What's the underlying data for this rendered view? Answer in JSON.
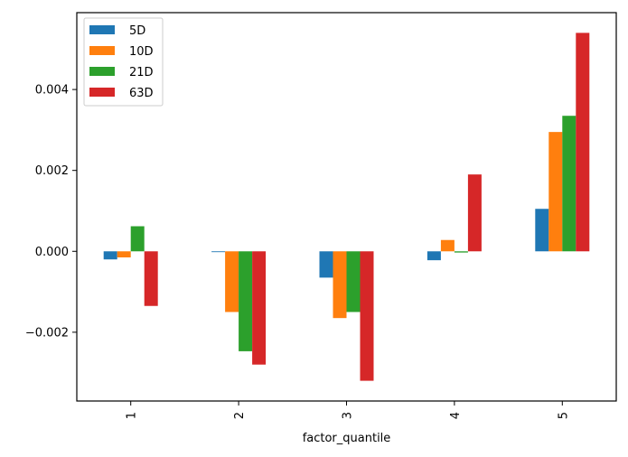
{
  "chart_data": {
    "type": "bar",
    "title": "",
    "xlabel": "factor_quantile",
    "ylabel": "",
    "categories": [
      "1",
      "2",
      "3",
      "4",
      "5"
    ],
    "ylim": [
      -0.0037,
      0.0059
    ],
    "yticks": [
      -0.002,
      0.0,
      0.002,
      0.004
    ],
    "ytick_labels": [
      "−0.002",
      "0.000",
      "0.002",
      "0.004"
    ],
    "grid": false,
    "legend_position": "top-left",
    "series": [
      {
        "name": "5D",
        "color": "#1f77b4",
        "values": [
          -0.0002,
          -2e-05,
          -0.00065,
          -0.00022,
          0.00105
        ]
      },
      {
        "name": "10D",
        "color": "#ff7f0e",
        "values": [
          -0.00015,
          -0.0015,
          -0.00165,
          0.00028,
          0.00295
        ]
      },
      {
        "name": "21D",
        "color": "#2ca02c",
        "values": [
          0.00062,
          -0.00247,
          -0.0015,
          -3e-05,
          0.00335
        ]
      },
      {
        "name": "63D",
        "color": "#d62728",
        "values": [
          -0.00135,
          -0.0028,
          -0.0032,
          0.0019,
          0.0054
        ]
      }
    ]
  }
}
